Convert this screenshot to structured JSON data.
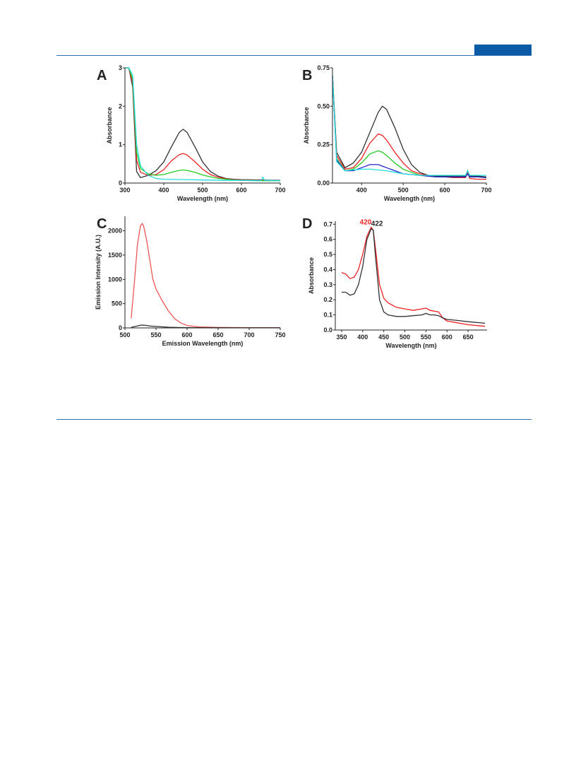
{
  "colors": {
    "rule": "#2e6fb5",
    "header_tab": "#0a5aa5"
  },
  "chart_data": [
    {
      "panel": "A",
      "type": "line",
      "xlabel": "Wavelength (nm)",
      "ylabel": "Absorbance",
      "xlim": [
        300,
        700
      ],
      "ylim": [
        0,
        3
      ],
      "xticks": [
        300,
        400,
        500,
        600,
        700
      ],
      "yticks": [
        0,
        1,
        2,
        3
      ],
      "series": [
        {
          "color": "#333333",
          "x": [
            300,
            310,
            320,
            330,
            340,
            360,
            380,
            400,
            420,
            440,
            450,
            460,
            480,
            500,
            520,
            540,
            560,
            580,
            600,
            650,
            700
          ],
          "y": [
            3,
            3,
            2.5,
            0.3,
            0.14,
            0.2,
            0.32,
            0.55,
            0.95,
            1.32,
            1.4,
            1.32,
            0.95,
            0.55,
            0.3,
            0.18,
            0.12,
            0.1,
            0.09,
            0.08,
            0.07
          ]
        },
        {
          "color": "#ee2222",
          "x": [
            300,
            310,
            320,
            330,
            340,
            360,
            380,
            400,
            420,
            440,
            450,
            460,
            480,
            500,
            520,
            540,
            560,
            580,
            600,
            650,
            700
          ],
          "y": [
            3,
            3,
            2.6,
            0.6,
            0.28,
            0.2,
            0.22,
            0.35,
            0.58,
            0.74,
            0.77,
            0.73,
            0.56,
            0.36,
            0.22,
            0.15,
            0.11,
            0.09,
            0.08,
            0.07,
            0.06
          ]
        },
        {
          "color": "#22cc22",
          "x": [
            300,
            310,
            320,
            330,
            340,
            360,
            380,
            400,
            420,
            440,
            450,
            460,
            480,
            500,
            520,
            540,
            560,
            580,
            600,
            650,
            700
          ],
          "y": [
            3,
            3,
            2.7,
            0.8,
            0.38,
            0.24,
            0.2,
            0.22,
            0.28,
            0.33,
            0.34,
            0.33,
            0.28,
            0.21,
            0.16,
            0.12,
            0.1,
            0.08,
            0.07,
            0.06,
            0.06
          ]
        },
        {
          "color": "#22dddd",
          "x": [
            300,
            310,
            320,
            330,
            340,
            360,
            380,
            400,
            450,
            500,
            550,
            600,
            650,
            655,
            660,
            700
          ],
          "y": [
            3,
            3,
            2.8,
            1.0,
            0.45,
            0.2,
            0.12,
            0.1,
            0.09,
            0.08,
            0.07,
            0.07,
            0.06,
            0.15,
            0.07,
            0.06
          ]
        }
      ]
    },
    {
      "panel": "B",
      "type": "line",
      "xlabel": "Wavelength (nm)",
      "ylabel": "Absorbance",
      "xlim": [
        330,
        700
      ],
      "ylim": [
        0,
        0.75
      ],
      "xticks": [
        400,
        500,
        600,
        700
      ],
      "yticks": [
        0.0,
        0.25,
        0.5,
        0.75
      ],
      "series": [
        {
          "color": "#333333",
          "x": [
            330,
            340,
            360,
            380,
            400,
            420,
            440,
            450,
            460,
            480,
            500,
            520,
            540,
            560,
            580,
            600,
            620,
            640,
            650,
            655,
            660,
            680,
            700
          ],
          "y": [
            0.7,
            0.2,
            0.1,
            0.13,
            0.2,
            0.33,
            0.46,
            0.5,
            0.48,
            0.36,
            0.22,
            0.12,
            0.07,
            0.05,
            0.045,
            0.045,
            0.045,
            0.045,
            0.045,
            0.08,
            0.045,
            0.045,
            0.04
          ]
        },
        {
          "color": "#ee2222",
          "x": [
            330,
            340,
            360,
            380,
            400,
            420,
            440,
            450,
            460,
            480,
            500,
            520,
            540,
            560,
            580,
            600,
            620,
            640,
            650,
            655,
            660,
            680,
            700
          ],
          "y": [
            0.7,
            0.18,
            0.09,
            0.1,
            0.16,
            0.26,
            0.32,
            0.31,
            0.28,
            0.2,
            0.13,
            0.08,
            0.06,
            0.05,
            0.04,
            0.04,
            0.035,
            0.035,
            0.035,
            0.07,
            0.03,
            0.025,
            0.025
          ]
        },
        {
          "color": "#22cc22",
          "x": [
            330,
            340,
            360,
            380,
            400,
            420,
            440,
            450,
            460,
            480,
            500,
            520,
            540,
            560,
            580,
            600,
            620,
            640,
            650,
            655,
            660,
            680,
            700
          ],
          "y": [
            0.7,
            0.16,
            0.08,
            0.09,
            0.13,
            0.19,
            0.21,
            0.2,
            0.18,
            0.13,
            0.09,
            0.07,
            0.05,
            0.045,
            0.04,
            0.04,
            0.04,
            0.04,
            0.04,
            0.06,
            0.04,
            0.04,
            0.035
          ]
        },
        {
          "color": "#2222cc",
          "x": [
            330,
            340,
            360,
            380,
            400,
            420,
            440,
            450,
            460,
            480,
            500,
            520,
            540,
            560,
            580,
            600,
            620,
            640,
            650,
            655,
            660,
            680,
            700
          ],
          "y": [
            0.7,
            0.15,
            0.08,
            0.08,
            0.1,
            0.12,
            0.12,
            0.11,
            0.1,
            0.08,
            0.06,
            0.055,
            0.05,
            0.045,
            0.04,
            0.04,
            0.04,
            0.04,
            0.04,
            0.06,
            0.04,
            0.04,
            0.035
          ]
        },
        {
          "color": "#22dddd",
          "x": [
            330,
            340,
            360,
            380,
            400,
            420,
            440,
            460,
            480,
            500,
            520,
            540,
            560,
            580,
            600,
            620,
            640,
            650,
            655,
            660,
            680,
            700
          ],
          "y": [
            0.7,
            0.14,
            0.08,
            0.085,
            0.09,
            0.09,
            0.085,
            0.08,
            0.07,
            0.06,
            0.055,
            0.05,
            0.05,
            0.05,
            0.05,
            0.05,
            0.05,
            0.05,
            0.08,
            0.05,
            0.05,
            0.05
          ]
        }
      ]
    },
    {
      "panel": "C",
      "type": "line",
      "xlabel": "Emission Wavelength (nm)",
      "ylabel": "Emission Intensity (A.U.)",
      "xlim": [
        500,
        750
      ],
      "ylim": [
        0,
        2300
      ],
      "xticks": [
        500,
        550,
        600,
        650,
        700,
        750
      ],
      "yticks": [
        0,
        500,
        1000,
        1500,
        2000
      ],
      "series": [
        {
          "color": "#ee5555",
          "x": [
            510,
            515,
            520,
            525,
            528,
            530,
            535,
            540,
            545,
            550,
            560,
            570,
            580,
            590,
            600,
            620,
            650,
            700,
            750
          ],
          "y": [
            200,
            900,
            1700,
            2100,
            2150,
            2100,
            1800,
            1400,
            1000,
            800,
            560,
            350,
            190,
            100,
            50,
            20,
            10,
            5,
            5
          ]
        },
        {
          "color": "#333333",
          "x": [
            510,
            515,
            520,
            525,
            530,
            535,
            540,
            550,
            560,
            570,
            580,
            600,
            650,
            700,
            750
          ],
          "y": [
            10,
            25,
            40,
            55,
            58,
            50,
            40,
            30,
            22,
            15,
            10,
            5,
            3,
            2,
            2
          ]
        }
      ]
    },
    {
      "panel": "D",
      "type": "line",
      "xlabel": "Wavelength (nm)",
      "ylabel": "Absorbance",
      "xlim": [
        335,
        695
      ],
      "ylim": [
        0,
        0.72
      ],
      "xticks": [
        350,
        400,
        450,
        500,
        550,
        600,
        650
      ],
      "yticks": [
        0.0,
        0.1,
        0.2,
        0.3,
        0.4,
        0.5,
        0.6,
        0.7
      ],
      "annotations": [
        {
          "text": "420",
          "color": "#ee2222",
          "x": 407,
          "y": 0.7
        },
        {
          "text": "422",
          "color": "#222222",
          "x": 434,
          "y": 0.69
        }
      ],
      "series": [
        {
          "color": "#ee2222",
          "x": [
            350,
            360,
            370,
            380,
            390,
            400,
            410,
            420,
            425,
            430,
            440,
            450,
            460,
            480,
            500,
            520,
            540,
            550,
            560,
            570,
            580,
            590,
            600,
            620,
            650,
            690
          ],
          "y": [
            0.38,
            0.37,
            0.34,
            0.35,
            0.4,
            0.5,
            0.62,
            0.68,
            0.66,
            0.55,
            0.3,
            0.21,
            0.18,
            0.15,
            0.14,
            0.13,
            0.14,
            0.145,
            0.13,
            0.125,
            0.12,
            0.08,
            0.06,
            0.05,
            0.035,
            0.025
          ]
        },
        {
          "color": "#333333",
          "x": [
            350,
            360,
            370,
            380,
            390,
            400,
            410,
            420,
            425,
            430,
            440,
            450,
            460,
            480,
            500,
            520,
            540,
            550,
            560,
            570,
            580,
            590,
            600,
            620,
            650,
            690
          ],
          "y": [
            0.25,
            0.25,
            0.23,
            0.24,
            0.3,
            0.42,
            0.6,
            0.67,
            0.66,
            0.5,
            0.2,
            0.12,
            0.1,
            0.09,
            0.09,
            0.095,
            0.1,
            0.11,
            0.1,
            0.1,
            0.095,
            0.08,
            0.07,
            0.065,
            0.055,
            0.045
          ]
        }
      ]
    }
  ]
}
